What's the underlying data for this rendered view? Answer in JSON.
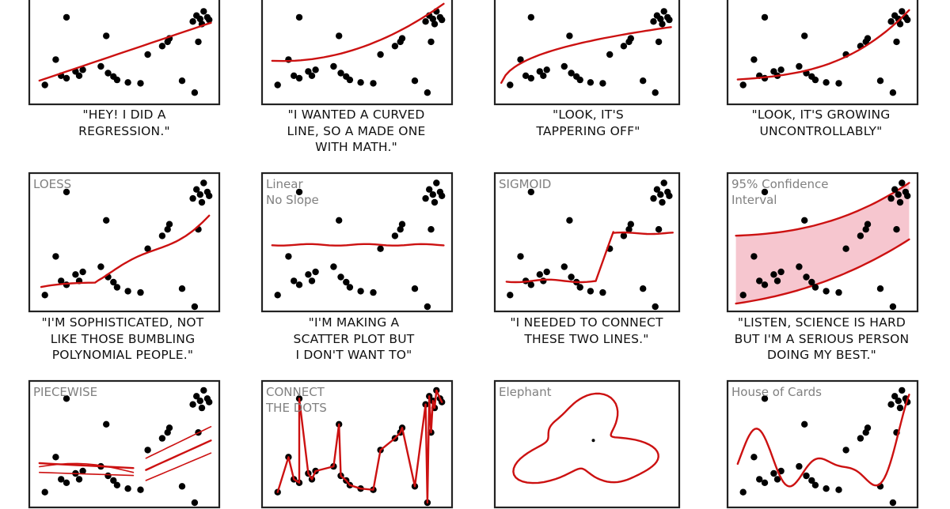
{
  "chart_data": [
    {
      "type": "scatter",
      "id": "p1",
      "caption": "\"HEY!  I DID A\nREGRESSION.\"",
      "fit": "linear"
    },
    {
      "type": "scatter",
      "id": "p2",
      "caption": "\"I WANTED A CURVED\nLINE, SO A MADE ONE\nWITH MATH.\"",
      "fit": "quadratic"
    },
    {
      "type": "scatter",
      "id": "p3",
      "caption": "\"LOOK, IT'S\nTAPPERING OFF\"",
      "fit": "logarithmic"
    },
    {
      "type": "scatter",
      "id": "p4",
      "caption": "\"LOOK, IT'S GROWING\nUNCONTROLLABLY\"",
      "fit": "exponential"
    },
    {
      "type": "scatter",
      "id": "p5",
      "label": "LOESS",
      "caption": "\"I'M SOPHISTICATED, NOT\nLIKE THOSE BUMBLING\nPOLYNOMIAL PEOPLE.\"",
      "fit": "loess"
    },
    {
      "type": "scatter",
      "id": "p6",
      "label": "Linear\nNo Slope",
      "caption": "\"I'M MAKING A\nSCATTER PLOT BUT\nI DON'T WANT TO\"",
      "fit": "flat"
    },
    {
      "type": "scatter",
      "id": "p7",
      "label": "SIGMOID",
      "caption": "\"I NEEDED TO CONNECT\nTHESE TWO LINES.\"",
      "fit": "sigmoid"
    },
    {
      "type": "scatter",
      "id": "p8",
      "label": "95% Confidence\nInterval",
      "caption": "\"LISTEN, SCIENCE IS HARD\nBUT I'M A SERIOUS PERSON\nDOING MY BEST.\"",
      "fit": "confidence-band"
    },
    {
      "type": "scatter",
      "id": "p9",
      "label": "PIECEWISE",
      "caption": "",
      "fit": "piecewise"
    },
    {
      "type": "scatter",
      "id": "p10",
      "label": "CONNECT\nTHE DOTS",
      "caption": "",
      "fit": "connect-dots"
    },
    {
      "type": "scatter",
      "id": "p11",
      "label": "Elephant",
      "caption": "",
      "fit": "elephant"
    },
    {
      "type": "scatter",
      "id": "p12",
      "label": "House of Cards",
      "caption": "",
      "fit": "high-order-polynomial"
    }
  ],
  "colors": {
    "fit_line": "#cc1111",
    "band": "#f6c6cf",
    "points": "#000000",
    "panel_label": "#808080"
  }
}
